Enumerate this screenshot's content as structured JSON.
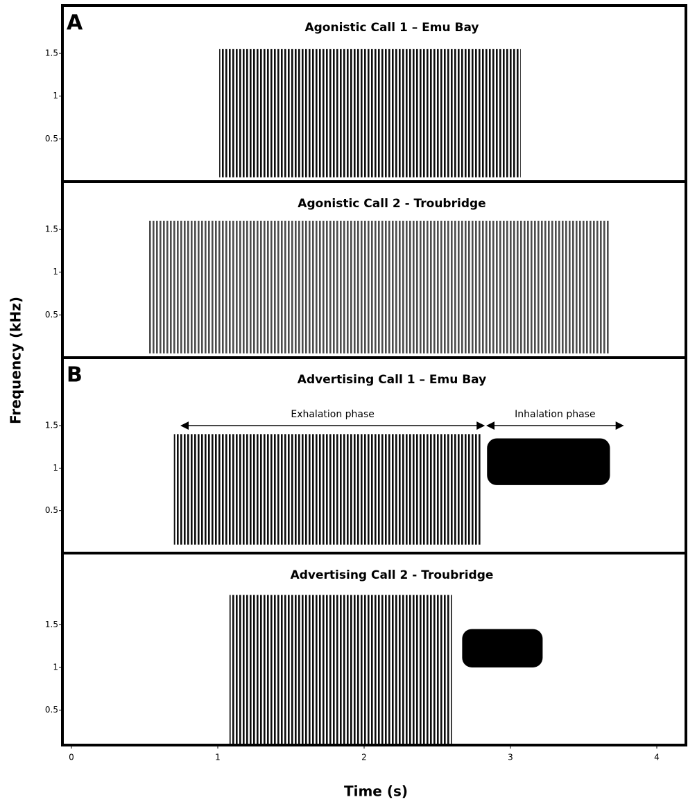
{
  "chart_data": [
    {
      "type": "spectrogram",
      "letter": "A",
      "title": "Agonistic Call 1 – Emu Bay",
      "ylim": [
        0,
        2.06
      ],
      "yticks": [
        0.5,
        1,
        1.5
      ],
      "segments": [
        {
          "x": [
            1.01,
            3.07
          ],
          "y": [
            0.05,
            1.55
          ],
          "color": "#111111",
          "stripes": true
        }
      ]
    },
    {
      "type": "spectrogram",
      "title": "Agonistic Call 2 - Troubridge",
      "ylim": [
        0,
        2.06
      ],
      "yticks": [
        0.5,
        1,
        1.5
      ],
      "segments": [
        {
          "x": [
            0.53,
            3.68
          ],
          "y": [
            0.05,
            1.6
          ],
          "color": "#444444",
          "stripes": true
        }
      ]
    },
    {
      "type": "spectrogram",
      "letter": "B",
      "title": "Advertising Call 1 – Emu Bay",
      "ylim": [
        0,
        2.3
      ],
      "yticks": [
        0.5,
        1,
        1.5
      ],
      "segments": [
        {
          "x": [
            0.7,
            2.8
          ],
          "y": [
            0.1,
            1.4
          ],
          "color": "#111111",
          "stripes": true
        },
        {
          "x": [
            2.84,
            3.68
          ],
          "y": [
            0.8,
            1.35
          ],
          "color": "#000000",
          "stripes": false
        }
      ],
      "annotations": [
        {
          "text": "Exhalation phase",
          "x": [
            0.75,
            2.82
          ],
          "y": 1.5
        },
        {
          "text": "Inhalation phase",
          "x": [
            2.84,
            3.77
          ],
          "y": 1.5
        }
      ]
    },
    {
      "type": "spectrogram",
      "title": "Advertising Call 2 - Troubridge",
      "ylim": [
        0.09,
        2.34
      ],
      "yticks": [
        0.5,
        1,
        1.5
      ],
      "segments": [
        {
          "x": [
            1.08,
            2.6
          ],
          "y": [
            0.1,
            1.85
          ],
          "color": "#111111",
          "stripes": true
        },
        {
          "x": [
            2.67,
            3.22
          ],
          "y": [
            1.0,
            1.45
          ],
          "color": "#000000",
          "stripes": false
        }
      ]
    }
  ],
  "axes": {
    "xlabel": "Time (s)",
    "ylabel": "Frequency (kHz)",
    "xlim": [
      0,
      4
    ],
    "xticks": [
      0,
      1,
      2,
      3,
      4
    ]
  }
}
